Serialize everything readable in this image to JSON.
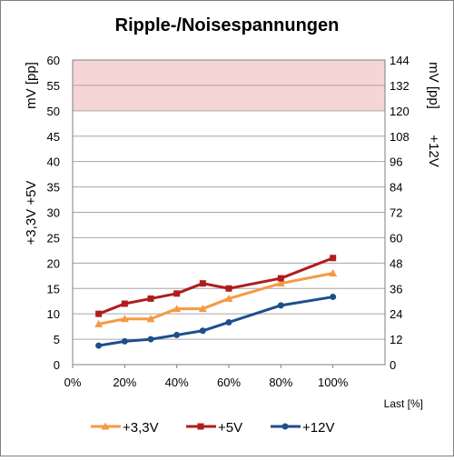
{
  "chart_data": {
    "type": "line",
    "title": "Ripple-/Noisespannungen",
    "xlabel": "Last [%]",
    "x_ticks": [
      "0%",
      "20%",
      "40%",
      "60%",
      "80%",
      "100%"
    ],
    "x": [
      10,
      20,
      30,
      40,
      50,
      60,
      80,
      100
    ],
    "xlim": [
      0,
      120
    ],
    "ylabel_left": "+3,3V +5V",
    "ylabel_left_unit": "mV [pp]",
    "ylim_left": [
      0,
      60
    ],
    "yticks_left": [
      "0",
      "5",
      "10",
      "15",
      "20",
      "25",
      "30",
      "35",
      "40",
      "45",
      "50",
      "55",
      "60"
    ],
    "ylabel_right": "+12V",
    "ylabel_right_unit": "mV [pp]",
    "ylim_right": [
      0,
      144
    ],
    "yticks_right": [
      "0",
      "12",
      "24",
      "36",
      "48",
      "60",
      "72",
      "84",
      "96",
      "108",
      "120",
      "132",
      "144"
    ],
    "limit_band_left": [
      50,
      60
    ],
    "grid": true,
    "legend_position": "bottom",
    "series": [
      {
        "name": "+3,3V",
        "axis": "left",
        "color": "#f59a44",
        "marker": "triangle",
        "values": [
          8,
          9,
          9,
          11,
          11,
          13,
          16,
          18
        ]
      },
      {
        "name": "+5V",
        "axis": "left",
        "color": "#b01c1c",
        "marker": "square",
        "values": [
          10,
          12,
          13,
          14,
          16,
          15,
          17,
          21
        ]
      },
      {
        "name": "+12V",
        "axis": "right",
        "color": "#1f4e8c",
        "marker": "circle",
        "values": [
          9,
          11,
          12,
          14,
          16,
          20,
          28,
          32
        ]
      }
    ],
    "colors": {
      "band": "#f6d5d6",
      "grid": "#a6a6a6",
      "frame": "#7f7f7f"
    }
  }
}
